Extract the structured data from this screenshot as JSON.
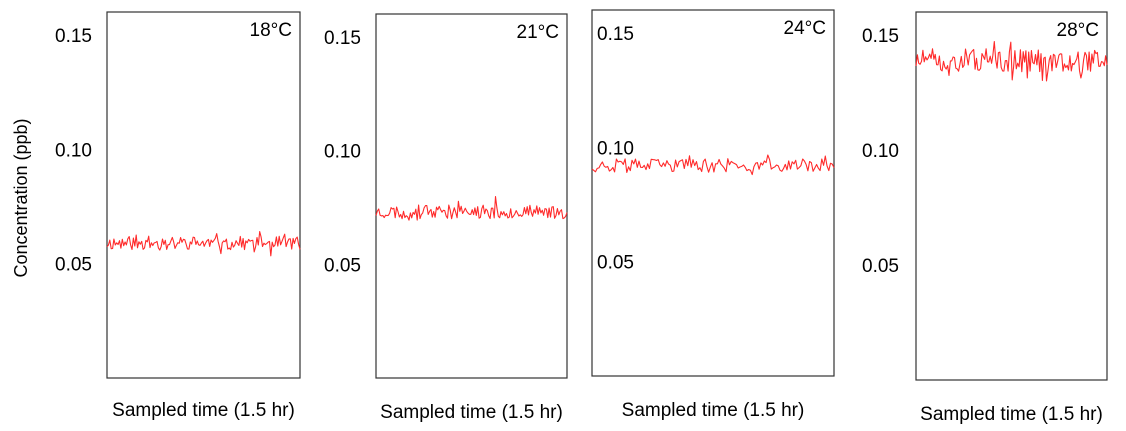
{
  "figure": {
    "ylabel": "Concentration (ppb)"
  },
  "colors": {
    "series": "#ff2a2a",
    "frame": "#333333"
  },
  "chart_data": [
    {
      "type": "line",
      "title": "18°C",
      "xlabel": "Sampled time (1.5 hr)",
      "ylabel": "Concentration (ppb)",
      "ylim": [
        0.0,
        0.16
      ],
      "yticks": [
        0.05,
        0.1,
        0.15
      ],
      "ytick_labels": [
        "0.05",
        "0.10",
        "0.15"
      ],
      "grid": false,
      "series": [
        {
          "center": 0.059,
          "amplitude": 0.003,
          "seed": 11
        }
      ]
    },
    {
      "type": "line",
      "title": "21°C",
      "xlabel": "Sampled time (1.5 hr)",
      "ylabel": "",
      "ylim": [
        0.0,
        0.16
      ],
      "yticks": [
        0.05,
        0.1,
        0.15
      ],
      "ytick_labels": [
        "0.05",
        "0.10",
        "0.15"
      ],
      "grid": false,
      "series": [
        {
          "center": 0.073,
          "amplitude": 0.003,
          "seed": 23
        }
      ]
    },
    {
      "type": "line",
      "title": "24°C",
      "xlabel": "Sampled time (1.5 hr)",
      "ylabel": "",
      "ylim": [
        0.0,
        0.16
      ],
      "yticks": [
        0.05,
        0.1,
        0.15
      ],
      "ytick_labels": [
        "0.05",
        "0.10",
        "0.15"
      ],
      "grid": false,
      "series": [
        {
          "center": 0.092,
          "amplitude": 0.003,
          "seed": 37
        }
      ]
    },
    {
      "type": "line",
      "title": "28°C",
      "xlabel": "Sampled time (1.5 hr)",
      "ylabel": "",
      "ylim": [
        0.0,
        0.16
      ],
      "yticks": [
        0.05,
        0.1,
        0.15
      ],
      "ytick_labels": [
        "0.05",
        "0.10",
        "0.15"
      ],
      "grid": false,
      "series": [
        {
          "center": 0.139,
          "amplitude": 0.005,
          "seed": 51
        }
      ]
    }
  ]
}
